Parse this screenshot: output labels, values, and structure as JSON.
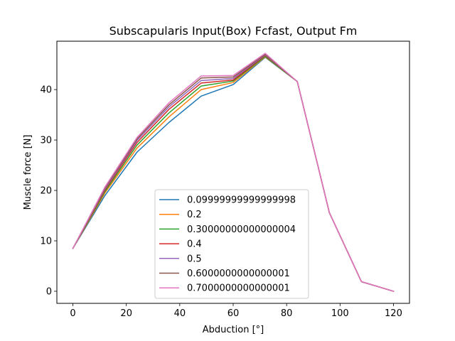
{
  "chart_data": {
    "type": "line",
    "title": "Subscapularis Input(Box) Fcfast, Output Fm",
    "xlabel": "Abduction [°]",
    "ylabel": "Muscle force [N]",
    "xlim": [
      -6,
      126
    ],
    "ylim": [
      -2.4,
      49.6
    ],
    "xticks": [
      0,
      20,
      40,
      60,
      80,
      100,
      120
    ],
    "yticks": [
      0,
      10,
      20,
      30,
      40
    ],
    "grid": false,
    "legend_position": "lower-center",
    "x": [
      0,
      12,
      24,
      36,
      48,
      60,
      72,
      84,
      96,
      108,
      120
    ],
    "series": [
      {
        "name": "0.09999999999999998",
        "color": "#1f77b4",
        "values": [
          8.5,
          19.0,
          27.6,
          33.5,
          38.7,
          41.0,
          46.4,
          41.6,
          15.6,
          1.9,
          0.0
        ]
      },
      {
        "name": "0.2",
        "color": "#ff7f0e",
        "values": [
          8.5,
          19.5,
          28.4,
          34.6,
          40.0,
          41.4,
          46.5,
          41.6,
          15.6,
          1.9,
          0.0
        ]
      },
      {
        "name": "0.30000000000000004",
        "color": "#2ca02c",
        "values": [
          8.5,
          19.8,
          29.0,
          35.4,
          40.7,
          41.7,
          46.6,
          41.6,
          15.6,
          1.9,
          0.0
        ]
      },
      {
        "name": "0.4",
        "color": "#d62728",
        "values": [
          8.5,
          20.1,
          29.5,
          36.1,
          41.3,
          41.9,
          46.8,
          41.6,
          15.6,
          1.9,
          0.0
        ]
      },
      {
        "name": "0.5",
        "color": "#9467bd",
        "values": [
          8.5,
          20.3,
          29.9,
          36.6,
          41.8,
          42.2,
          46.9,
          41.6,
          15.6,
          1.9,
          0.0
        ]
      },
      {
        "name": "0.6000000000000001",
        "color": "#8c564b",
        "values": [
          8.5,
          20.5,
          30.2,
          37.0,
          42.3,
          42.5,
          47.0,
          41.6,
          15.6,
          1.9,
          0.0
        ]
      },
      {
        "name": "0.7000000000000001",
        "color": "#e377c2",
        "values": [
          8.5,
          20.7,
          30.5,
          37.4,
          42.7,
          42.8,
          47.2,
          41.6,
          15.6,
          1.9,
          0.0
        ]
      }
    ]
  }
}
